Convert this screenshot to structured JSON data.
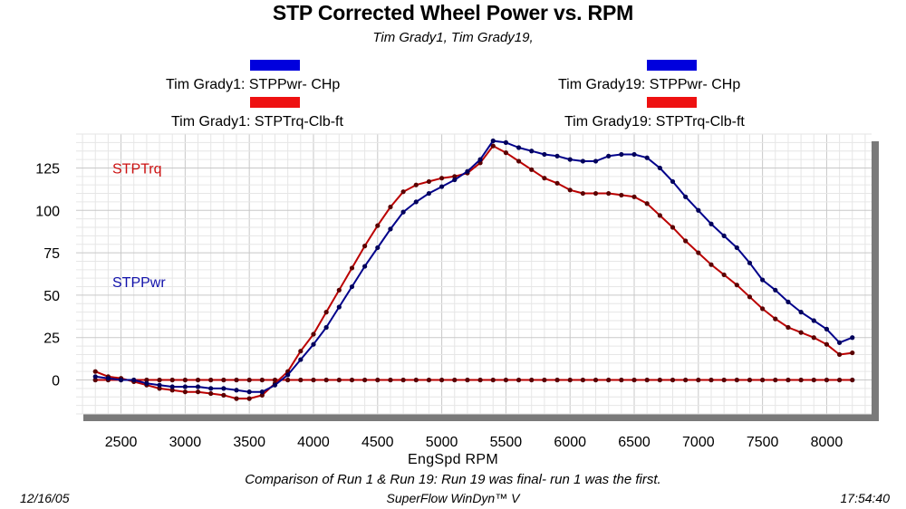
{
  "title": "STP Corrected Wheel Power vs. RPM",
  "subtitle": "Tim Grady1, Tim Grady19,",
  "legend": [
    {
      "label": "Tim Grady1: STPPwr- CHp",
      "color": "#0000dd"
    },
    {
      "label": "Tim Grady1: STPTrq-Clb-ft",
      "color": "#ee1111"
    },
    {
      "label": "Tim Grady19: STPPwr- CHp",
      "color": "#0000dd"
    },
    {
      "label": "Tim Grady19: STPTrq-Clb-ft",
      "color": "#ee1111"
    }
  ],
  "footer": {
    "comparison": "Comparison of Run 1 & Run 19:  Run 19 was final- run 1 was the first.",
    "date": "12/16/05",
    "software": "SuperFlow WinDyn™ V",
    "time": "17:54:40"
  },
  "chart_data": {
    "type": "line",
    "title": "STP Corrected Wheel Power vs. RPM",
    "xlabel": "EngSpd  RPM",
    "ylabel": "",
    "xlim": [
      2150,
      8350
    ],
    "ylim": [
      -20,
      145
    ],
    "x_ticks": [
      2500,
      3000,
      3500,
      4000,
      4500,
      5000,
      5500,
      6000,
      6500,
      7000,
      7500,
      8000
    ],
    "y_ticks": [
      0,
      25,
      50,
      75,
      100,
      125
    ],
    "grid": true,
    "annotations": [
      {
        "text": "STPTrq",
        "color": "#cc1111",
        "x": 2500,
        "y": 125
      },
      {
        "text": "STPPwr",
        "color": "#1111aa",
        "x": 2500,
        "y": 58
      }
    ],
    "series": [
      {
        "name": "STPPwr",
        "color": "#00008b",
        "marker_color": "#00005a",
        "x": [
          2300,
          2400,
          2500,
          2600,
          2700,
          2800,
          2900,
          3000,
          3100,
          3200,
          3300,
          3400,
          3500,
          3600,
          3700,
          3800,
          3900,
          4000,
          4100,
          4200,
          4300,
          4400,
          4500,
          4600,
          4700,
          4800,
          4900,
          5000,
          5100,
          5200,
          5300,
          5400,
          5500,
          5600,
          5700,
          5800,
          5900,
          6000,
          6100,
          6200,
          6300,
          6400,
          6500,
          6600,
          6700,
          6800,
          6900,
          7000,
          7100,
          7200,
          7300,
          7400,
          7500,
          7600,
          7700,
          7800,
          7900,
          8000,
          8100,
          8200
        ],
        "values": [
          2,
          1,
          0,
          0,
          -2,
          -3,
          -4,
          -4,
          -4,
          -5,
          -5,
          -6,
          -7,
          -7,
          -3,
          3,
          12,
          21,
          31,
          43,
          55,
          67,
          78,
          89,
          99,
          105,
          110,
          114,
          118,
          123,
          130,
          141,
          140,
          137,
          135,
          133,
          132,
          130,
          129,
          129,
          132,
          133,
          133,
          131,
          125,
          117,
          108,
          100,
          92,
          85,
          78,
          69,
          59,
          53,
          46,
          40,
          35,
          30,
          22,
          25
        ]
      },
      {
        "name": "STPTrq",
        "color": "#bb0000",
        "marker_color": "#5a0000",
        "x": [
          2300,
          2400,
          2500,
          2600,
          2700,
          2800,
          2900,
          3000,
          3100,
          3200,
          3300,
          3400,
          3500,
          3600,
          3700,
          3800,
          3900,
          4000,
          4100,
          4200,
          4300,
          4400,
          4500,
          4600,
          4700,
          4800,
          4900,
          5000,
          5100,
          5200,
          5300,
          5400,
          5500,
          5600,
          5700,
          5800,
          5900,
          6000,
          6100,
          6200,
          6300,
          6400,
          6500,
          6600,
          6700,
          6800,
          6900,
          7000,
          7100,
          7200,
          7300,
          7400,
          7500,
          7600,
          7700,
          7800,
          7900,
          8000,
          8100,
          8200
        ],
        "values": [
          5,
          2,
          1,
          -1,
          -3,
          -5,
          -6,
          -7,
          -7,
          -8,
          -9,
          -11,
          -11,
          -9,
          -2,
          5,
          17,
          27,
          40,
          53,
          66,
          79,
          91,
          102,
          111,
          115,
          117,
          119,
          120,
          122,
          128,
          138,
          134,
          129,
          124,
          119,
          116,
          112,
          110,
          110,
          110,
          109,
          108,
          104,
          97,
          90,
          82,
          75,
          68,
          62,
          56,
          49,
          42,
          36,
          31,
          28,
          25,
          21,
          15,
          16
        ]
      },
      {
        "name": "Run 19 STPPwr",
        "color": "#00008b",
        "marker_color": "#00005a",
        "x": [
          2300,
          2400,
          2500,
          2600,
          2700,
          2800,
          2900,
          3000,
          3100,
          3200,
          3300,
          3400,
          3500,
          3600,
          3700,
          3800,
          3900,
          4000,
          4100,
          4200,
          4300,
          4400,
          4500,
          4600,
          4700,
          4800,
          4900,
          5000,
          5100,
          5200,
          5300,
          5400,
          5500,
          5600,
          5700,
          5800,
          5900,
          6000,
          6100,
          6200,
          6300,
          6400,
          6500,
          6600,
          6700,
          6800,
          6900,
          7000,
          7100,
          7200,
          7300,
          7400,
          7500,
          7600,
          7700,
          7800,
          7900,
          8000,
          8100,
          8200
        ],
        "values": [
          0,
          0,
          0,
          0,
          0,
          0,
          0,
          0,
          0,
          0,
          0,
          0,
          0,
          0,
          0,
          0,
          0,
          0,
          0,
          0,
          0,
          0,
          0,
          0,
          0,
          0,
          0,
          0,
          0,
          0,
          0,
          0,
          0,
          0,
          0,
          0,
          0,
          0,
          0,
          0,
          0,
          0,
          0,
          0,
          0,
          0,
          0,
          0,
          0,
          0,
          0,
          0,
          0,
          0,
          0,
          0,
          0,
          0,
          0,
          0
        ]
      },
      {
        "name": "Run 19 STPTrq",
        "color": "#bb0000",
        "marker_color": "#5a0000",
        "x": [
          2300,
          2400,
          2500,
          2600,
          2700,
          2800,
          2900,
          3000,
          3100,
          3200,
          3300,
          3400,
          3500,
          3600,
          3700,
          3800,
          3900,
          4000,
          4100,
          4200,
          4300,
          4400,
          4500,
          4600,
          4700,
          4800,
          4900,
          5000,
          5100,
          5200,
          5300,
          5400,
          5500,
          5600,
          5700,
          5800,
          5900,
          6000,
          6100,
          6200,
          6300,
          6400,
          6500,
          6600,
          6700,
          6800,
          6900,
          7000,
          7100,
          7200,
          7300,
          7400,
          7500,
          7600,
          7700,
          7800,
          7900,
          8000,
          8100,
          8200
        ],
        "values": [
          0,
          0,
          0,
          0,
          0,
          0,
          0,
          0,
          0,
          0,
          0,
          0,
          0,
          0,
          0,
          0,
          0,
          0,
          0,
          0,
          0,
          0,
          0,
          0,
          0,
          0,
          0,
          0,
          0,
          0,
          0,
          0,
          0,
          0,
          0,
          0,
          0,
          0,
          0,
          0,
          0,
          0,
          0,
          0,
          0,
          0,
          0,
          0,
          0,
          0,
          0,
          0,
          0,
          0,
          0,
          0,
          0,
          0,
          0,
          0
        ]
      }
    ]
  }
}
